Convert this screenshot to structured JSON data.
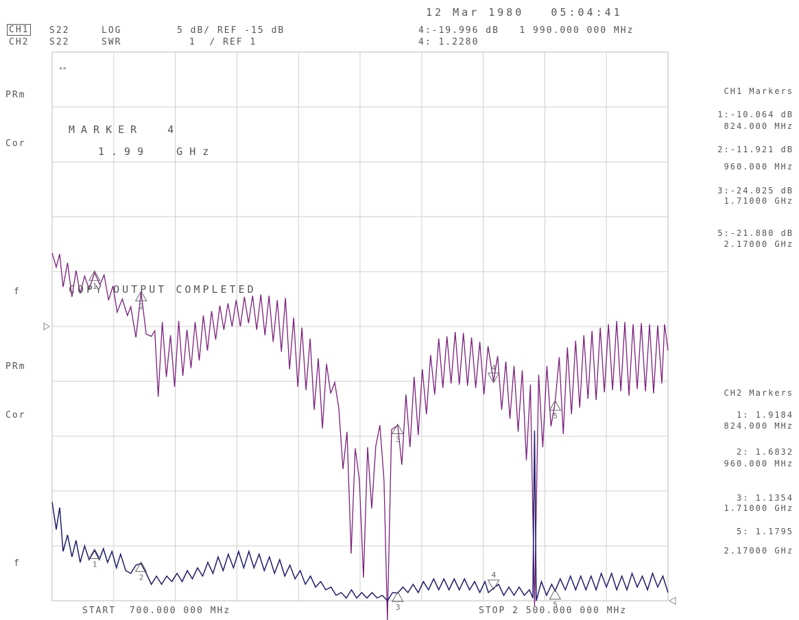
{
  "header": {
    "datetime": "12 Mar 1980   05:04:41",
    "ch1": {
      "label": "CH1",
      "param": "S22",
      "format": "LOG",
      "scale": "5 dB/ REF -15 dB",
      "marker_readout": "4:-19.996 dB   1 990.000 000 MHz"
    },
    "ch2": {
      "label": "CH2",
      "param": "S22",
      "format": "SWR",
      "scale": "1  / REF 1",
      "marker_readout": "4: 1.2280"
    }
  },
  "left_annotations": {
    "ch1_prm": "PRm",
    "ch1_cor": "Cor",
    "ch1_f": "f",
    "ch2_prm": "PRm",
    "ch2_cor": "Cor",
    "ch2_f": "f",
    "corner_mark": "**"
  },
  "overlay": {
    "marker_title": "MARKER  4",
    "marker_freq": "1.99  GHz",
    "copy_msg": "COPY OUTPUT COMPLETED"
  },
  "footer": {
    "start": "START  700.000 000 MHz",
    "stop": "STOP 2 500.000 000 MHz"
  },
  "ch1_markers": {
    "title": "CH1 Markers",
    "items": [
      {
        "value": "1:-10.064 dB",
        "freq": "824.000 MHz"
      },
      {
        "value": "2:-11.921 dB",
        "freq": "960.000 MHz"
      },
      {
        "value": "3:-24.025 dB",
        "freq": "1.71000 GHz"
      },
      {
        "value": "5:-21.880 dB",
        "freq": "2.17000 GHz"
      }
    ]
  },
  "ch2_markers": {
    "title": "CH2 Markers",
    "items": [
      {
        "value": "1: 1.9184",
        "freq": "824.000 MHz"
      },
      {
        "value": "2: 1.6832",
        "freq": "960.000 MHz"
      },
      {
        "value": "3: 1.1354",
        "freq": "1.71000 GHz"
      },
      {
        "value": "5: 1.1795",
        "freq": "2.17000 GHz"
      }
    ]
  },
  "colors": {
    "ch1": "#7a1f7a",
    "ch2": "#1c1c6e",
    "grid": "#cfcfcf",
    "text": "#555555"
  },
  "chart_data": {
    "type": "line",
    "x_unit": "MHz",
    "xlim": [
      700,
      2500
    ],
    "grid": "10x10",
    "series": [
      {
        "channel": "CH1",
        "format": "LOG MAG",
        "unit": "dB",
        "ylim": [
          -40,
          10
        ],
        "points": [
          [
            700,
            -8.3
          ],
          [
            712,
            -9.6
          ],
          [
            722,
            -8.4
          ],
          [
            732,
            -11.4
          ],
          [
            745,
            -9.2
          ],
          [
            758,
            -12.3
          ],
          [
            770,
            -9.9
          ],
          [
            782,
            -12.0
          ],
          [
            795,
            -10.4
          ],
          [
            808,
            -11.6
          ],
          [
            824,
            -10.1
          ],
          [
            840,
            -11.2
          ],
          [
            852,
            -10.3
          ],
          [
            865,
            -12.6
          ],
          [
            878,
            -11.3
          ],
          [
            890,
            -13.7
          ],
          [
            905,
            -12.5
          ],
          [
            920,
            -14.0
          ],
          [
            930,
            -13.2
          ],
          [
            945,
            -16.0
          ],
          [
            960,
            -11.9
          ],
          [
            975,
            -15.7
          ],
          [
            990,
            -15.9
          ],
          [
            1000,
            -15.4
          ],
          [
            1010,
            -21.4
          ],
          [
            1022,
            -14.6
          ],
          [
            1034,
            -19.6
          ],
          [
            1046,
            -15.8
          ],
          [
            1058,
            -20.5
          ],
          [
            1070,
            -14.5
          ],
          [
            1082,
            -19.5
          ],
          [
            1094,
            -15.3
          ],
          [
            1106,
            -18.8
          ],
          [
            1118,
            -14.6
          ],
          [
            1130,
            -18.1
          ],
          [
            1142,
            -14.0
          ],
          [
            1154,
            -17.2
          ],
          [
            1166,
            -13.6
          ],
          [
            1178,
            -16.2
          ],
          [
            1190,
            -13.1
          ],
          [
            1202,
            -15.3
          ],
          [
            1214,
            -12.9
          ],
          [
            1226,
            -15.0
          ],
          [
            1238,
            -12.6
          ],
          [
            1250,
            -15.0
          ],
          [
            1262,
            -12.3
          ],
          [
            1274,
            -14.7
          ],
          [
            1286,
            -12.2
          ],
          [
            1298,
            -15.3
          ],
          [
            1310,
            -12.1
          ],
          [
            1322,
            -15.8
          ],
          [
            1334,
            -12.2
          ],
          [
            1346,
            -16.4
          ],
          [
            1358,
            -12.6
          ],
          [
            1370,
            -17.3
          ],
          [
            1382,
            -12.4
          ],
          [
            1394,
            -18.9
          ],
          [
            1406,
            -14.2
          ],
          [
            1418,
            -20.5
          ],
          [
            1430,
            -15.1
          ],
          [
            1442,
            -20.8
          ],
          [
            1454,
            -16.1
          ],
          [
            1466,
            -22.6
          ],
          [
            1478,
            -17.9
          ],
          [
            1490,
            -24.3
          ],
          [
            1502,
            -18.4
          ],
          [
            1514,
            -21.1
          ],
          [
            1526,
            -20.1
          ],
          [
            1538,
            -22.5
          ],
          [
            1550,
            -28.0
          ],
          [
            1562,
            -24.6
          ],
          [
            1574,
            -35.7
          ],
          [
            1586,
            -26.1
          ],
          [
            1598,
            -29.0
          ],
          [
            1610,
            -37.9
          ],
          [
            1622,
            -26.0
          ],
          [
            1634,
            -31.6
          ],
          [
            1646,
            -25.9
          ],
          [
            1658,
            -24.0
          ],
          [
            1670,
            -29.0
          ],
          [
            1680,
            -41.8
          ],
          [
            1692,
            -24.4
          ],
          [
            1710,
            -24.0
          ],
          [
            1722,
            -27.6
          ],
          [
            1734,
            -21.2
          ],
          [
            1746,
            -26.0
          ],
          [
            1758,
            -19.6
          ],
          [
            1770,
            -24.9
          ],
          [
            1782,
            -18.9
          ],
          [
            1794,
            -23.0
          ],
          [
            1806,
            -17.6
          ],
          [
            1818,
            -21.2
          ],
          [
            1830,
            -16.1
          ],
          [
            1842,
            -20.6
          ],
          [
            1854,
            -15.9
          ],
          [
            1866,
            -20.2
          ],
          [
            1878,
            -15.5
          ],
          [
            1890,
            -20.3
          ],
          [
            1902,
            -15.6
          ],
          [
            1914,
            -20.4
          ],
          [
            1926,
            -16.0
          ],
          [
            1938,
            -20.6
          ],
          [
            1950,
            -16.4
          ],
          [
            1962,
            -21.2
          ],
          [
            1974,
            -16.8
          ],
          [
            1990,
            -20.0
          ],
          [
            2002,
            -17.7
          ],
          [
            2014,
            -22.6
          ],
          [
            2026,
            -18.2
          ],
          [
            2038,
            -23.4
          ],
          [
            2050,
            -18.6
          ],
          [
            2062,
            -24.6
          ],
          [
            2074,
            -19.0
          ],
          [
            2086,
            -27.2
          ],
          [
            2098,
            -20.3
          ],
          [
            2110,
            -40.5
          ],
          [
            2122,
            -19.4
          ],
          [
            2134,
            -26.0
          ],
          [
            2146,
            -18.6
          ],
          [
            2158,
            -24.1
          ],
          [
            2170,
            -21.9
          ],
          [
            2182,
            -17.8
          ],
          [
            2194,
            -24.8
          ],
          [
            2206,
            -16.9
          ],
          [
            2218,
            -23.0
          ],
          [
            2230,
            -16.3
          ],
          [
            2242,
            -22.4
          ],
          [
            2254,
            -15.8
          ],
          [
            2266,
            -21.6
          ],
          [
            2278,
            -15.4
          ],
          [
            2290,
            -21.7
          ],
          [
            2302,
            -15.1
          ],
          [
            2314,
            -21.0
          ],
          [
            2326,
            -14.8
          ],
          [
            2338,
            -20.8
          ],
          [
            2350,
            -14.5
          ],
          [
            2362,
            -20.9
          ],
          [
            2374,
            -14.6
          ],
          [
            2386,
            -21.3
          ],
          [
            2398,
            -14.8
          ],
          [
            2410,
            -20.7
          ],
          [
            2422,
            -14.7
          ],
          [
            2434,
            -20.9
          ],
          [
            2446,
            -14.8
          ],
          [
            2458,
            -21.1
          ],
          [
            2470,
            -14.9
          ],
          [
            2482,
            -20.2
          ],
          [
            2490,
            -14.8
          ],
          [
            2500,
            -17.2
          ]
        ],
        "markers": [
          {
            "id": "1",
            "x": 824,
            "y": -10.064
          },
          {
            "id": "2",
            "x": 960,
            "y": -11.921
          },
          {
            "id": "3",
            "x": 1710,
            "y": -24.025
          },
          {
            "id": "4",
            "x": 1990,
            "y": -19.996
          },
          {
            "id": "5",
            "x": 2170,
            "y": -21.88
          }
        ]
      },
      {
        "channel": "CH2",
        "format": "SWR",
        "unit": "",
        "ylim": [
          1,
          11
        ],
        "points": [
          [
            700,
            2.8
          ],
          [
            712,
            2.3
          ],
          [
            722,
            2.7
          ],
          [
            732,
            1.9
          ],
          [
            745,
            2.2
          ],
          [
            758,
            1.8
          ],
          [
            770,
            2.1
          ],
          [
            782,
            1.7
          ],
          [
            795,
            2.0
          ],
          [
            808,
            1.75
          ],
          [
            824,
            1.92
          ],
          [
            838,
            1.75
          ],
          [
            850,
            1.95
          ],
          [
            862,
            1.7
          ],
          [
            875,
            1.9
          ],
          [
            888,
            1.6
          ],
          [
            900,
            1.85
          ],
          [
            915,
            1.55
          ],
          [
            930,
            1.5
          ],
          [
            945,
            1.65
          ],
          [
            960,
            1.68
          ],
          [
            975,
            1.5
          ],
          [
            990,
            1.3
          ],
          [
            1005,
            1.45
          ],
          [
            1020,
            1.3
          ],
          [
            1035,
            1.45
          ],
          [
            1050,
            1.35
          ],
          [
            1065,
            1.5
          ],
          [
            1080,
            1.35
          ],
          [
            1095,
            1.55
          ],
          [
            1110,
            1.4
          ],
          [
            1125,
            1.6
          ],
          [
            1140,
            1.45
          ],
          [
            1155,
            1.7
          ],
          [
            1170,
            1.5
          ],
          [
            1185,
            1.8
          ],
          [
            1200,
            1.55
          ],
          [
            1215,
            1.85
          ],
          [
            1230,
            1.6
          ],
          [
            1245,
            1.9
          ],
          [
            1260,
            1.6
          ],
          [
            1275,
            1.9
          ],
          [
            1290,
            1.6
          ],
          [
            1305,
            1.85
          ],
          [
            1320,
            1.55
          ],
          [
            1335,
            1.8
          ],
          [
            1350,
            1.5
          ],
          [
            1365,
            1.75
          ],
          [
            1380,
            1.45
          ],
          [
            1395,
            1.65
          ],
          [
            1410,
            1.4
          ],
          [
            1425,
            1.55
          ],
          [
            1440,
            1.3
          ],
          [
            1455,
            1.45
          ],
          [
            1470,
            1.25
          ],
          [
            1485,
            1.35
          ],
          [
            1500,
            1.2
          ],
          [
            1515,
            1.25
          ],
          [
            1530,
            1.1
          ],
          [
            1545,
            1.15
          ],
          [
            1560,
            1.05
          ],
          [
            1575,
            1.2
          ],
          [
            1590,
            1.05
          ],
          [
            1605,
            1.15
          ],
          [
            1620,
            1.05
          ],
          [
            1635,
            1.15
          ],
          [
            1650,
            1.05
          ],
          [
            1665,
            1.1
          ],
          [
            1680,
            1.0
          ],
          [
            1695,
            1.15
          ],
          [
            1710,
            1.14
          ],
          [
            1725,
            1.25
          ],
          [
            1740,
            1.15
          ],
          [
            1755,
            1.3
          ],
          [
            1770,
            1.15
          ],
          [
            1785,
            1.35
          ],
          [
            1800,
            1.2
          ],
          [
            1815,
            1.4
          ],
          [
            1830,
            1.2
          ],
          [
            1845,
            1.4
          ],
          [
            1860,
            1.2
          ],
          [
            1875,
            1.4
          ],
          [
            1890,
            1.2
          ],
          [
            1905,
            1.4
          ],
          [
            1920,
            1.2
          ],
          [
            1935,
            1.35
          ],
          [
            1950,
            1.15
          ],
          [
            1965,
            1.35
          ],
          [
            1975,
            1.15
          ],
          [
            1990,
            1.23
          ],
          [
            2005,
            1.3
          ],
          [
            2020,
            1.1
          ],
          [
            2035,
            1.25
          ],
          [
            2050,
            1.1
          ],
          [
            2065,
            1.25
          ],
          [
            2080,
            1.1
          ],
          [
            2095,
            1.2
          ],
          [
            2105,
            1.05
          ],
          [
            2110,
            4.1
          ],
          [
            2115,
            1.0
          ],
          [
            2130,
            1.35
          ],
          [
            2145,
            1.1
          ],
          [
            2160,
            1.3
          ],
          [
            2170,
            1.18
          ],
          [
            2185,
            1.4
          ],
          [
            2200,
            1.2
          ],
          [
            2215,
            1.45
          ],
          [
            2230,
            1.2
          ],
          [
            2245,
            1.45
          ],
          [
            2260,
            1.2
          ],
          [
            2275,
            1.45
          ],
          [
            2290,
            1.2
          ],
          [
            2305,
            1.5
          ],
          [
            2320,
            1.25
          ],
          [
            2335,
            1.5
          ],
          [
            2350,
            1.2
          ],
          [
            2365,
            1.45
          ],
          [
            2380,
            1.2
          ],
          [
            2395,
            1.5
          ],
          [
            2410,
            1.25
          ],
          [
            2425,
            1.45
          ],
          [
            2440,
            1.2
          ],
          [
            2455,
            1.5
          ],
          [
            2470,
            1.25
          ],
          [
            2485,
            1.45
          ],
          [
            2500,
            1.15
          ]
        ],
        "markers": [
          {
            "id": "1",
            "x": 824,
            "y": 1.9184
          },
          {
            "id": "2",
            "x": 960,
            "y": 1.6832
          },
          {
            "id": "3",
            "x": 1710,
            "y": 1.1354
          },
          {
            "id": "4",
            "x": 1990,
            "y": 1.228
          },
          {
            "id": "5",
            "x": 2170,
            "y": 1.1795
          }
        ]
      }
    ]
  }
}
